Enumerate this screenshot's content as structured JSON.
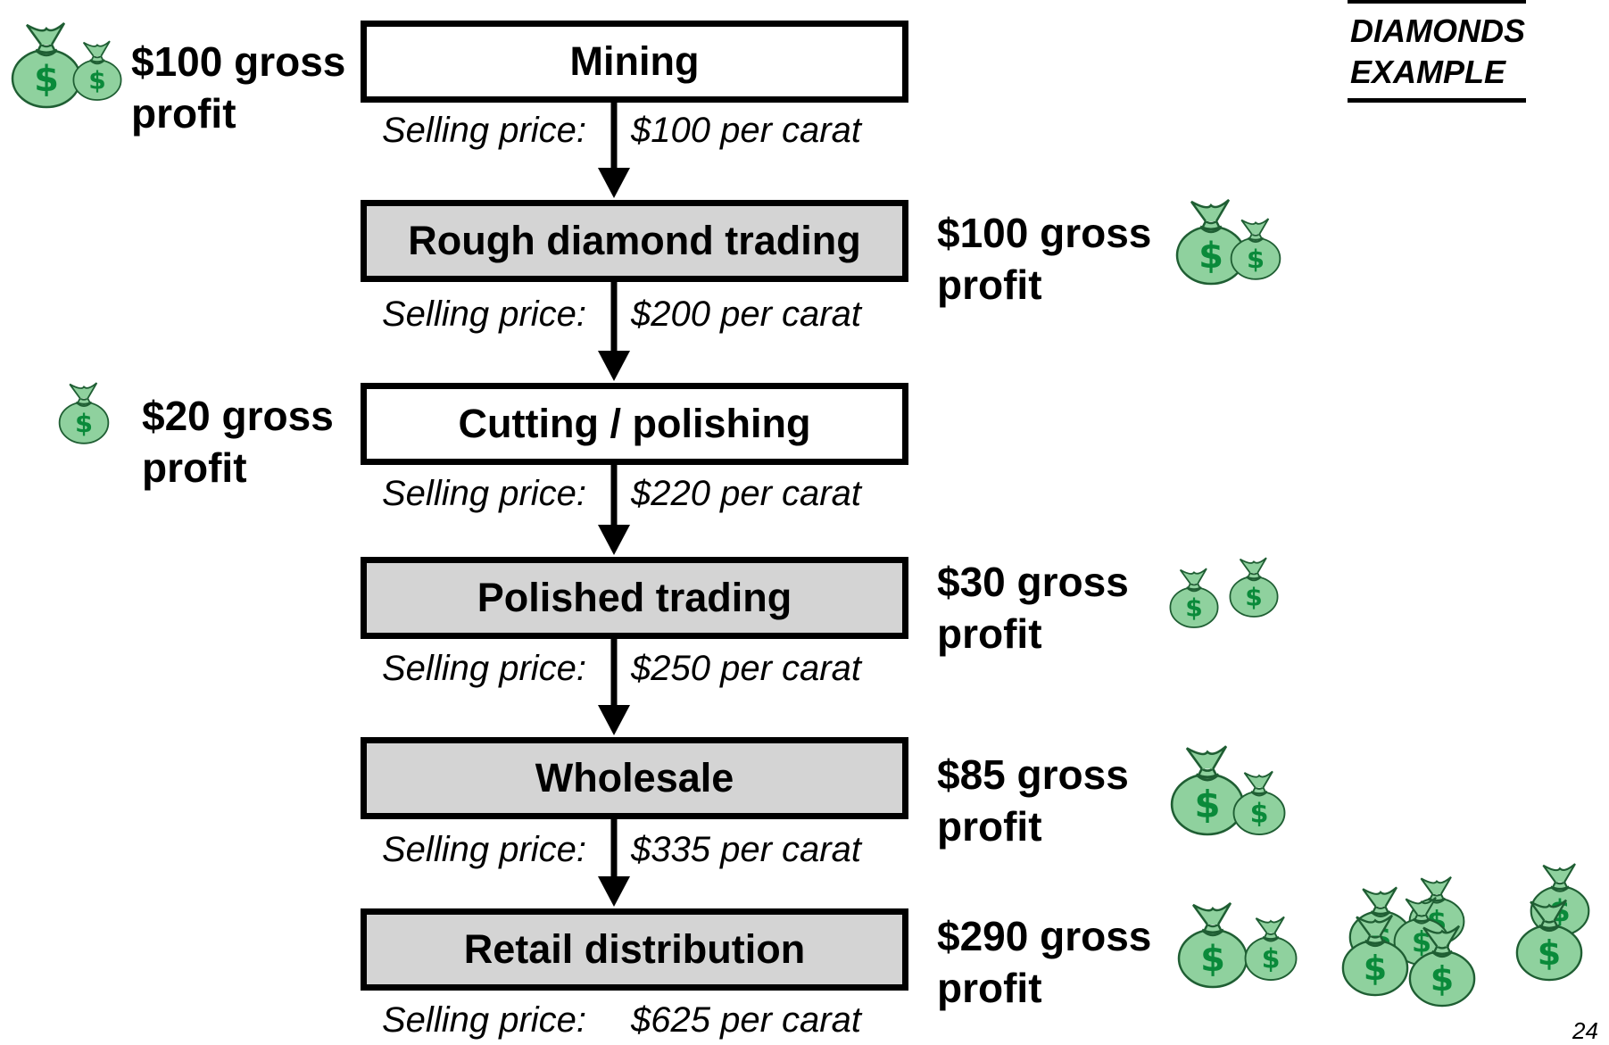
{
  "header": {
    "lines": [
      "DIAMONDS",
      "EXAMPLE"
    ]
  },
  "stages": [
    {
      "label": "Mining",
      "fill": "#ffffff",
      "price_label": "Selling price:",
      "price": "$100 per carat",
      "profit": "$100 gross profit"
    },
    {
      "label": "Rough diamond trading",
      "fill": "#d4d4d4",
      "price_label": "Selling price:",
      "price": "$200 per carat",
      "profit": "$100 gross profit"
    },
    {
      "label": "Cutting / polishing",
      "fill": "#ffffff",
      "price_label": "Selling price:",
      "price": "$220 per carat",
      "profit": "$20 gross profit"
    },
    {
      "label": "Polished trading",
      "fill": "#d4d4d4",
      "price_label": "Selling price:",
      "price": "$250 per carat",
      "profit": "$30 gross profit"
    },
    {
      "label": "Wholesale",
      "fill": "#d4d4d4",
      "price_label": "Selling price:",
      "price": "$335 per carat",
      "profit": "$85 gross profit"
    },
    {
      "label": "Retail distribution",
      "fill": "#d4d4d4",
      "price_label": "Selling price:",
      "price": "$625 per carat",
      "profit": "$290 gross profit"
    }
  ],
  "page_number": "24"
}
